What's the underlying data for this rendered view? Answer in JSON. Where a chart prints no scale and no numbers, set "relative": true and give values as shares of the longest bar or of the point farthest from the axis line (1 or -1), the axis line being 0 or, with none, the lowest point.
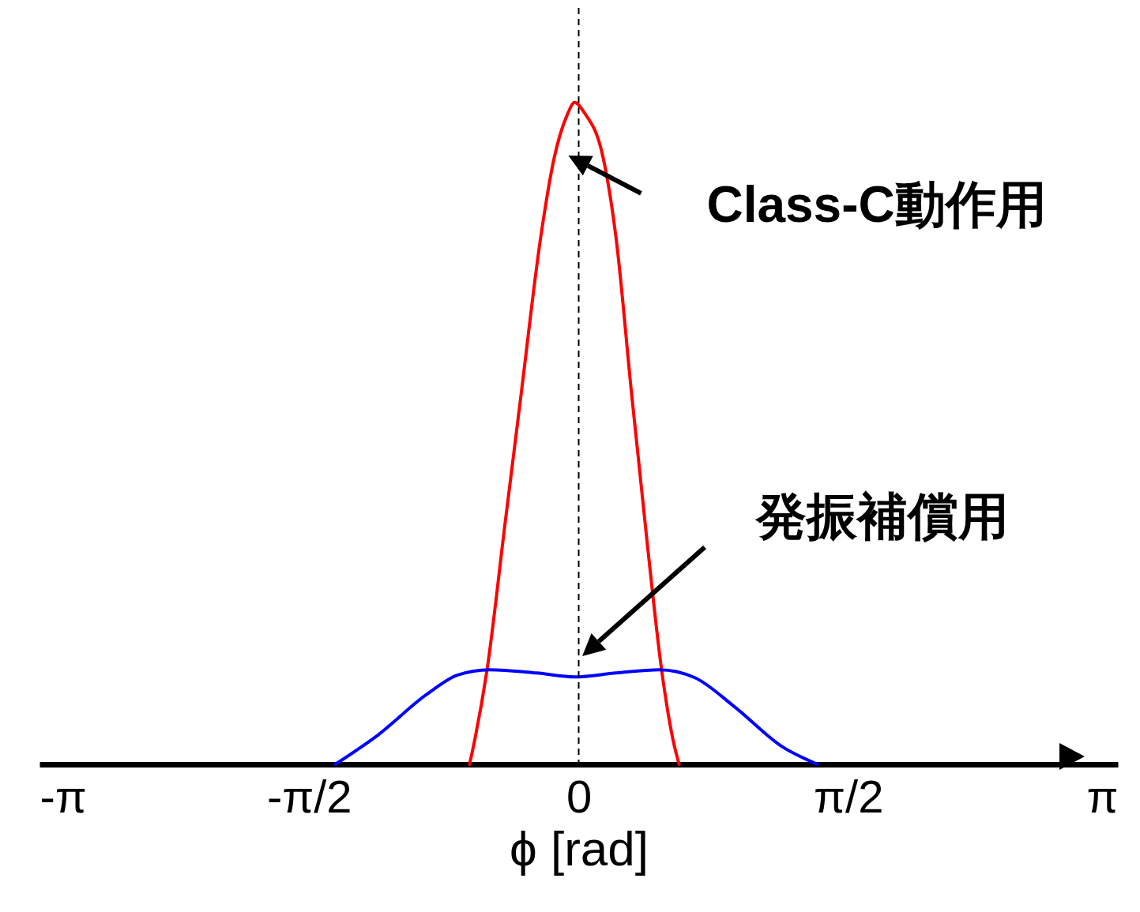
{
  "chart_data": {
    "type": "line",
    "relative": true,
    "xlabel": "ϕ [rad]",
    "xlim": [
      -3.14159,
      3.14159
    ],
    "xticks": [
      {
        "value": -3.14159,
        "label": "-π"
      },
      {
        "value": -1.5708,
        "label": "-π/2"
      },
      0,
      {
        "value": 1.5708,
        "label": "π/2"
      },
      {
        "value": 3.14159,
        "label": "π"
      }
    ],
    "grid": false,
    "marker": "none",
    "line_style": "solid",
    "series": [
      {
        "color": "#ff0000",
        "x": [
          -0.636,
          -0.604,
          -0.535,
          -0.429,
          -0.336,
          -0.221,
          -0.143,
          -0.069,
          -0.023,
          0.032,
          0.143,
          0.217,
          0.309,
          0.401,
          0.484,
          0.548,
          0.585
        ],
        "values": [
          0,
          0.039,
          0.141,
          0.364,
          0.558,
          0.797,
          0.916,
          0.98,
          1,
          0.985,
          0.916,
          0.797,
          0.558,
          0.33,
          0.141,
          0.039,
          0
        ]
      },
      {
        "color": "#0000ff",
        "x": [
          -1.419,
          -1.166,
          -0.889,
          -0.705,
          -0.521,
          -0.244,
          -0.023,
          0.217,
          0.47,
          0.677,
          0.908,
          1.184,
          1.392
        ],
        "values": [
          0,
          0.045,
          0.105,
          0.135,
          0.143,
          0.138,
          0.132,
          0.138,
          0.143,
          0.131,
          0.087,
          0.027,
          0
        ]
      }
    ],
    "ref_lines": [
      {
        "axis": "x",
        "value": 0,
        "color": "#000000",
        "line_style": "dashed"
      }
    ],
    "annotations": [
      {
        "text": "Class-C動作用",
        "x": 0.17,
        "y": 0.908
      },
      "発振補償用"
    ]
  }
}
